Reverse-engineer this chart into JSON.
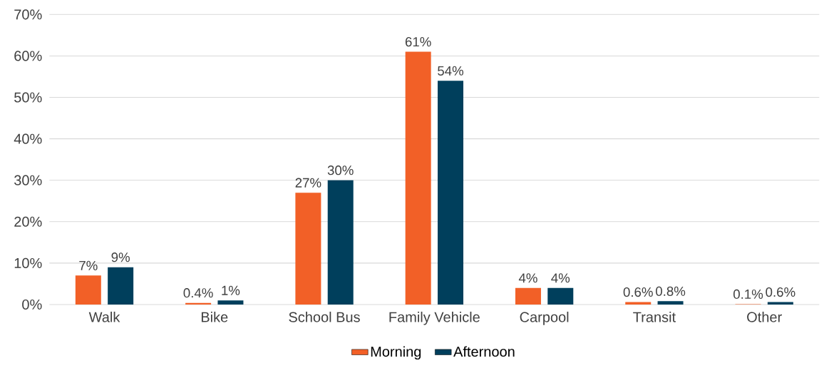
{
  "chart_data": {
    "type": "bar",
    "categories": [
      "Walk",
      "Bike",
      "School Bus",
      "Family Vehicle",
      "Carpool",
      "Transit",
      "Other"
    ],
    "series": [
      {
        "name": "Morning",
        "color": "#f26027",
        "values": [
          7,
          0.4,
          27,
          61,
          4,
          0.6,
          0.1
        ],
        "value_labels": [
          "7%",
          "0.4%",
          "27%",
          "61%",
          "4%",
          "0.6%",
          "0.1%"
        ]
      },
      {
        "name": "Afternoon",
        "color": "#003f5c",
        "values": [
          9,
          1,
          30,
          54,
          4,
          0.8,
          0.6
        ],
        "value_labels": [
          "9%",
          "1%",
          "30%",
          "54%",
          "4%",
          "0.8%",
          "0.6%"
        ]
      }
    ],
    "ylim": [
      0,
      70
    ],
    "yticks": [
      {
        "value": 0,
        "label": "0%"
      },
      {
        "value": 10,
        "label": "10%"
      },
      {
        "value": 20,
        "label": "20%"
      },
      {
        "value": 30,
        "label": "30%"
      },
      {
        "value": 40,
        "label": "40%"
      },
      {
        "value": 50,
        "label": "50%"
      },
      {
        "value": 60,
        "label": "60%"
      },
      {
        "value": 70,
        "label": "70%"
      }
    ],
    "grid": "y",
    "legend": "bottom"
  }
}
